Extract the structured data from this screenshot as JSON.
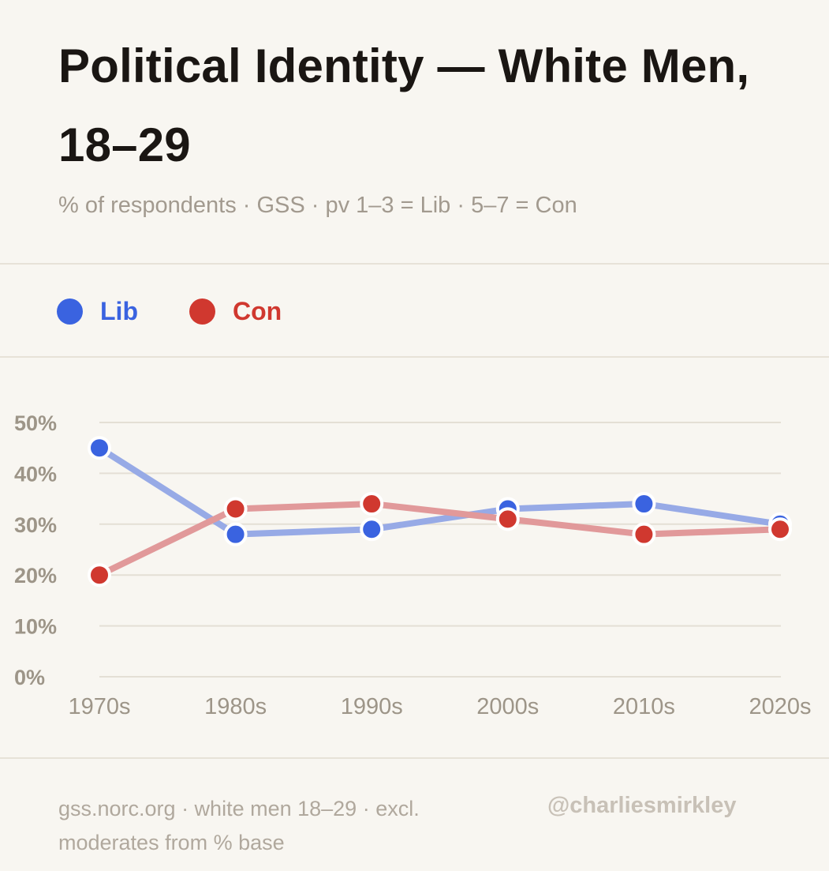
{
  "header": {
    "title": "Political Identity — White Men, 18–29",
    "subtitle": "% of respondents · GSS · pv 1–3 = Lib · 5–7 = Con"
  },
  "legend": {
    "items": [
      {
        "label": "Lib",
        "color": "#3a63e0"
      },
      {
        "label": "Con",
        "color": "#d0382f"
      }
    ]
  },
  "chart_data": {
    "type": "line",
    "title": "Political Identity — White Men, 18–29",
    "subtitle": "% of respondents · GSS · pv 1–3 = Lib · 5–7 = Con",
    "xlabel": "",
    "ylabel": "",
    "categories": [
      "1970s",
      "1980s",
      "1990s",
      "2000s",
      "2010s",
      "2020s"
    ],
    "series": [
      {
        "name": "Lib",
        "color": "#3a63e0",
        "line_color": "#97aae6",
        "values": [
          45,
          28,
          29,
          33,
          34,
          30
        ]
      },
      {
        "name": "Con",
        "color": "#d0382f",
        "line_color": "#e1999a",
        "values": [
          20,
          33,
          34,
          31,
          28,
          29
        ]
      }
    ],
    "ylim": [
      0,
      50
    ],
    "yticks": [
      0,
      10,
      20,
      30,
      40,
      50
    ],
    "ytick_labels": [
      "0%",
      "10%",
      "20%",
      "30%",
      "40%",
      "50%"
    ],
    "grid": true,
    "legend_position": "top-left"
  },
  "footer": {
    "note": "gss.norc.org · white men 18–29 · excl. moderates from % base",
    "handle": "@charliesmirkley"
  }
}
